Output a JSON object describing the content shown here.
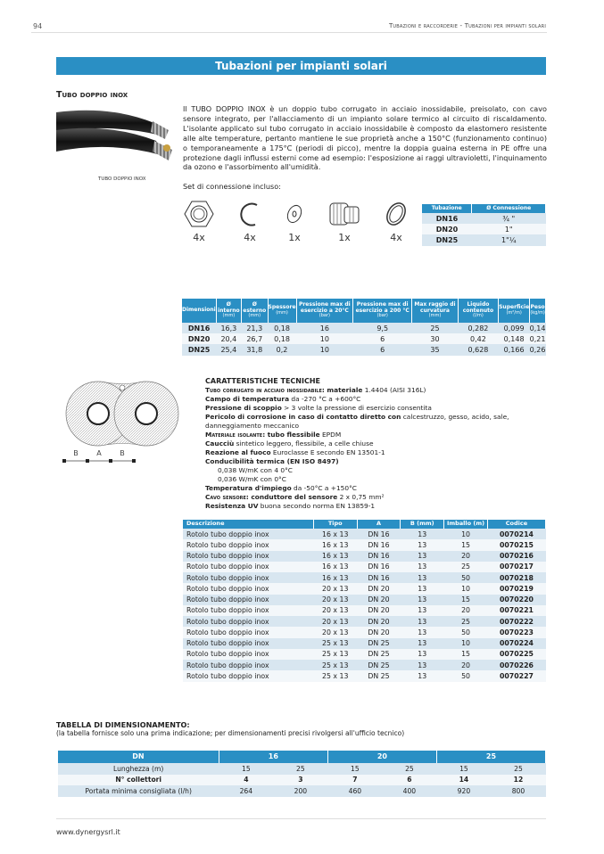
{
  "header": {
    "page_number": "94",
    "running_title": "Tubazioni e raccorderie - Tubazioni per impianti solari"
  },
  "title": "Tubazioni per impianti solari",
  "product": {
    "heading": "Tubo doppio inox",
    "photo_caption": "TUBO DOPPIO INOX",
    "description": "Il TUBO DOPPIO INOX è un doppio tubo corrugato in acciaio inossidabile, preisolato, con cavo sensore integrato, per l'allacciamento di un impianto solare termico al circuito di riscaldamento. L'isolante applicato sul tubo corrugato in acciaio inossidabile è composto da elastomero resistente alle alte temperature, pertanto mantiene le sue proprietà anche a 150°C (funzionamento continuo) o temporaneamente a 175°C (periodi di picco), mentre la doppia guaina esterna in PE offre una protezione dagli influssi esterni come ad esempio: l'esposizione ai raggi ultravioletti, l'inquinamento da ozono e l'assorbimento all'umidità.",
    "set_label": "Set di connessione incluso:",
    "parts": [
      {
        "icon": "nut-icon",
        "qty": "4x"
      },
      {
        "icon": "snap-ring-icon",
        "qty": "4x"
      },
      {
        "icon": "washer-icon",
        "qty": "1x"
      },
      {
        "icon": "fitting-icon",
        "qty": "1x"
      },
      {
        "icon": "gasket-icon",
        "qty": "4x"
      }
    ]
  },
  "connection_table": {
    "headers": [
      "Tubazione",
      "Ø Connessione"
    ],
    "rows": [
      [
        "DN16",
        "¾ \""
      ],
      [
        "DN20",
        "1\""
      ],
      [
        "DN25",
        "1\"¼"
      ]
    ]
  },
  "dimensions_table": {
    "headers": [
      {
        "t": "Dimensioni",
        "u": ""
      },
      {
        "t": "Ø interno",
        "u": "(mm)"
      },
      {
        "t": "Ø esterno",
        "u": "(mm)"
      },
      {
        "t": "Spessore",
        "u": "(mm)"
      },
      {
        "t": "Pressione max di esercizio a 20°C",
        "u": "(bar)"
      },
      {
        "t": "Pressione max di esercizio a 200 °C",
        "u": "(bar)"
      },
      {
        "t": "Max raggio di curvatura",
        "u": "(mm)"
      },
      {
        "t": "Liquido contenuto",
        "u": "(l/m)"
      },
      {
        "t": "Superficie",
        "u": "(m²/m)"
      },
      {
        "t": "Peso",
        "u": "(kg/m)"
      }
    ],
    "rows": [
      [
        "DN16",
        "16,3",
        "21,3",
        "0,18",
        "16",
        "9,5",
        "25",
        "0,282",
        "0,099",
        "0,14"
      ],
      [
        "DN20",
        "20,4",
        "26,7",
        "0,18",
        "10",
        "6",
        "30",
        "0,42",
        "0,148",
        "0,21"
      ],
      [
        "DN25",
        "25,4",
        "31,8",
        "0,2",
        "10",
        "6",
        "35",
        "0,628",
        "0,166",
        "0,26"
      ]
    ]
  },
  "diagram": {
    "labels": [
      "B",
      "A",
      "B"
    ]
  },
  "tech": {
    "title": "CARATTERISTICHE TECNICHE",
    "lines": [
      {
        "sc": "Tubo corrugato in acciaio inossidabile:",
        "b": " materiale",
        "r": " 1.4404 (AISI 316L)"
      },
      {
        "sc": "",
        "b": "Campo di temperatura",
        "r": " da -270 °C a +600°C"
      },
      {
        "sc": "",
        "b": "Pressione di scoppio",
        "r": " > 3 volte la pressione di esercizio consentita"
      },
      {
        "sc": "",
        "b": "Pericolo di corrosione in caso di contatto diretto con",
        "r": " calcestruzzo, gesso, acido, sale, danneggiamento meccanico"
      },
      {
        "sc": "Materiale isolante:",
        "b": " tubo flessibile",
        "r": " EPDM"
      },
      {
        "sc": "",
        "b": "Caucciù",
        "r": " sintetico leggero, flessibile, a celle chiuse"
      },
      {
        "sc": "",
        "b": "Reazione al fuoco",
        "r": " Euroclasse E secondo EN 13501-1"
      },
      {
        "sc": "",
        "b": "Conducibilità termica (EN ISO 8497)",
        "r": ""
      },
      {
        "ind": "0,038 W/mK con 4 0°C"
      },
      {
        "ind": "0,036 W/mK con 0°C"
      },
      {
        "sc": "",
        "b": "Temperatura d'impiego",
        "r": " da -50°C a +150°C"
      },
      {
        "sc": "Cavo sensore:",
        "b": " conduttore del sensore",
        "r": " 2 x 0,75 mm²"
      },
      {
        "sc": "",
        "b": "Resistenza UV",
        "r": " buona secondo norma EN 13859-1"
      }
    ]
  },
  "product_table": {
    "headers": [
      "Descrizione",
      "Tipo",
      "A",
      "B (mm)",
      "Imballo (m)",
      "Codice"
    ],
    "rows": [
      [
        "Rotolo tubo doppio inox",
        "16 x 13",
        "DN 16",
        "13",
        "10",
        "0070214"
      ],
      [
        "Rotolo tubo doppio inox",
        "16 x 13",
        "DN 16",
        "13",
        "15",
        "0070215"
      ],
      [
        "Rotolo tubo doppio inox",
        "16 x 13",
        "DN 16",
        "13",
        "20",
        "0070216"
      ],
      [
        "Rotolo tubo doppio inox",
        "16 x 13",
        "DN 16",
        "13",
        "25",
        "0070217"
      ],
      [
        "Rotolo tubo doppio inox",
        "16 x 13",
        "DN 16",
        "13",
        "50",
        "0070218"
      ],
      [
        "Rotolo tubo doppio inox",
        "20 x 13",
        "DN 20",
        "13",
        "10",
        "0070219"
      ],
      [
        "Rotolo tubo doppio inox",
        "20 x 13",
        "DN 20",
        "13",
        "15",
        "0070220"
      ],
      [
        "Rotolo tubo doppio inox",
        "20 x 13",
        "DN 20",
        "13",
        "20",
        "0070221"
      ],
      [
        "Rotolo tubo doppio inox",
        "20 x 13",
        "DN 20",
        "13",
        "25",
        "0070222"
      ],
      [
        "Rotolo tubo doppio inox",
        "20 x 13",
        "DN 20",
        "13",
        "50",
        "0070223"
      ],
      [
        "Rotolo tubo doppio inox",
        "25 x 13",
        "DN 25",
        "13",
        "10",
        "0070224"
      ],
      [
        "Rotolo tubo doppio inox",
        "25 x 13",
        "DN 25",
        "13",
        "15",
        "0070225"
      ],
      [
        "Rotolo tubo doppio inox",
        "25 x 13",
        "DN 25",
        "13",
        "20",
        "0070226"
      ],
      [
        "Rotolo tubo doppio inox",
        "25 x 13",
        "DN 25",
        "13",
        "50",
        "0070227"
      ]
    ]
  },
  "sizing": {
    "heading": "TABELLA DI DIMENSIONAMENTO:",
    "note": "(la tabella fornisce solo una prima indicazione; per dimensionamenti precisi rivolgersi all'ufficio tecnico)",
    "headers": [
      "DN",
      "16",
      "20",
      "25"
    ],
    "rows": [
      {
        "label": "Lunghezza (m)",
        "bold": false,
        "values": [
          "15",
          "25",
          "15",
          "25",
          "15",
          "25"
        ]
      },
      {
        "label": "N° collettori",
        "bold": true,
        "values": [
          "4",
          "3",
          "7",
          "6",
          "14",
          "12"
        ]
      },
      {
        "label": "Portata minima consigliata (l/h)",
        "bold": false,
        "values": [
          "264",
          "200",
          "460",
          "400",
          "920",
          "800"
        ]
      }
    ]
  },
  "footer": {
    "website": "www.dynergysrl.it"
  },
  "colors": {
    "accent": "#2a8fc4",
    "row_alt": "#d8e6f0"
  }
}
